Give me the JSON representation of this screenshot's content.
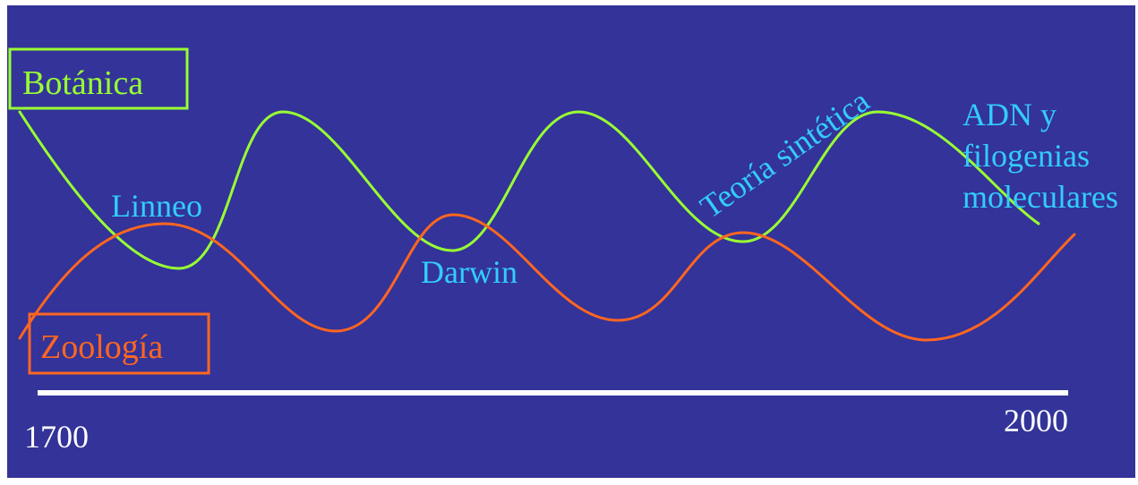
{
  "labels": {
    "botanica": "Botánica",
    "zoologia": "Zoología",
    "linneo": "Linneo",
    "darwin": "Darwin",
    "teoria_sintetica": "Teoría sintética",
    "adn_line1": "ADN y",
    "adn_line2": "filogenias",
    "adn_line3": "moleculares"
  },
  "axis": {
    "start_year": "1700",
    "end_year": "2000"
  },
  "colors": {
    "background": "#333399",
    "botanica": "#99ff33",
    "zoologia": "#ff6620",
    "event_text": "#33ccff",
    "axis": "#ffffff",
    "frame": "#ffffff"
  }
}
